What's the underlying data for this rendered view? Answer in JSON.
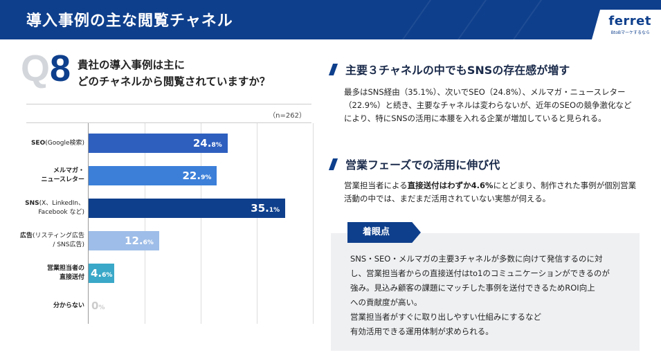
{
  "header": {
    "title": "導入事例の主な閲覧チャネル",
    "logo": "ferret",
    "logo_sub": "BtoBマーケするなら"
  },
  "question": {
    "q_letter": "Q",
    "q_number": "8",
    "line1": "貴社の導入事例は主に",
    "line2": "どのチャネルから閲覧されていますか？"
  },
  "chart_data": {
    "type": "bar",
    "orientation": "horizontal",
    "sample_size": "（n=262）",
    "unit": "%",
    "categories": [
      {
        "main": "SEO",
        "sub": "(Google検索)"
      },
      {
        "main": "メルマガ・\nニュースレター",
        "sub": ""
      },
      {
        "main": "SNS",
        "sub": "(X、LinkedIn、\nFacebook など)"
      },
      {
        "main": "広告",
        "sub": "(リスティング広告\n/ SNS広告)"
      },
      {
        "main": "営業担当者の\n直接送付",
        "sub": ""
      },
      {
        "main": "分からない",
        "sub": ""
      }
    ],
    "values": [
      24.8,
      22.9,
      35.1,
      12.6,
      4.6,
      0
    ],
    "value_labels": [
      {
        "int": "24.",
        "dec": "8%"
      },
      {
        "int": "22.",
        "dec": "9%"
      },
      {
        "int": "35.",
        "dec": "1%"
      },
      {
        "int": "12.",
        "dec": "6%"
      },
      {
        "int": "4.",
        "dec": "6%"
      },
      {
        "int": "0",
        "dec": "%"
      }
    ],
    "colors": [
      "#2e5fbf",
      "#3b7fd9",
      "#0e3f8c",
      "#9ebde8",
      "#3aa8c8",
      "#cccccc"
    ],
    "xlim": [
      0,
      40
    ],
    "grid": true
  },
  "section1": {
    "heading": "主要３チャネルの中でもSNSの存在感が増す",
    "text": "最多はSNS経由（35.1%）、次いでSEO（24.8%）、メルマガ・ニュースレター（22.9%）と続き、主要なチャネルは変わらないが、近年のSEOの競争激化などにより、特にSNSの活用に本腰を入れる企業が増加していると見られる。"
  },
  "section2": {
    "heading": "営業フェーズでの活用に伸び代",
    "text_pre": "営業担当者による",
    "text_bold": "直接送付はわずか4.6%",
    "text_post": "にとどまり、制作された事例が個別営業活動の中では、まだまだ活用されていない実態が伺える。"
  },
  "point": {
    "tag": "着眼点",
    "line1": "SNS・SEO・メルマガの主要3チャネルが多数に向けて発信するのに対",
    "line2": "し、営業担当者からの直接送付はto1のコミュニケーションができるのが",
    "line3": "強み。見込み顧客の課題にマッチした事例を送付できるためROI向上",
    "line4": "への貢献度が高い。",
    "line5": "営業担当者がすぐに取り出しやすい仕組みにするなど",
    "line6": "有効活用できる運用体制が求められる。"
  }
}
